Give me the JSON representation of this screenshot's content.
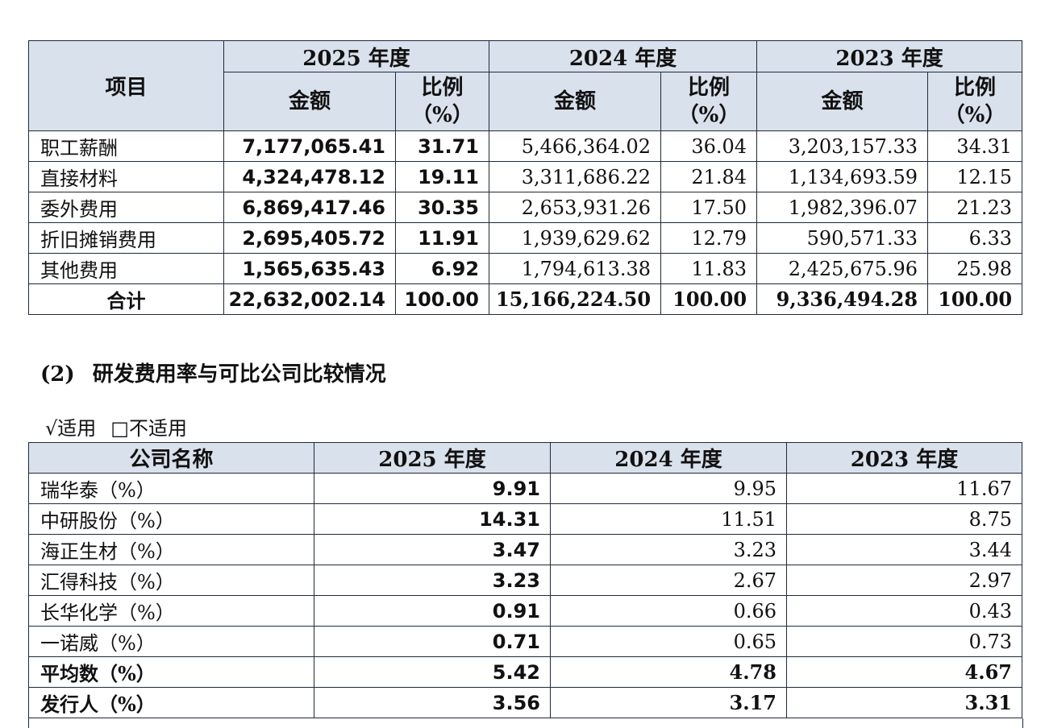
{
  "table1": {
    "header": {
      "item": "项目",
      "years": [
        "2025 年度",
        "2024 年度",
        "2023 年度"
      ],
      "amount": "金额",
      "ratio_line1": "比例",
      "ratio_line2": "（%）"
    },
    "rows": [
      {
        "item": "职工薪酬",
        "a2025": "7,177,065.41",
        "r2025": "31.71",
        "a2024": "5,466,364.02",
        "r2024": "36.04",
        "a2023": "3,203,157.33",
        "r2023": "34.31"
      },
      {
        "item": "直接材料",
        "a2025": "4,324,478.12",
        "r2025": "19.11",
        "a2024": "3,311,686.22",
        "r2024": "21.84",
        "a2023": "1,134,693.59",
        "r2023": "12.15"
      },
      {
        "item": "委外费用",
        "a2025": "6,869,417.46",
        "r2025": "30.35",
        "a2024": "2,653,931.26",
        "r2024": "17.50",
        "a2023": "1,982,396.07",
        "r2023": "21.23"
      },
      {
        "item": "折旧摊销费用",
        "a2025": "2,695,405.72",
        "r2025": "11.91",
        "a2024": "1,939,629.62",
        "r2024": "12.79",
        "a2023": "590,571.33",
        "r2023": "6.33"
      },
      {
        "item": "其他费用",
        "a2025": "1,565,635.43",
        "r2025": "6.92",
        "a2024": "1,794,613.38",
        "r2024": "11.83",
        "a2023": "2,425,675.96",
        "r2023": "25.98"
      }
    ],
    "total": {
      "item": "合计",
      "a2025": "22,632,002.14",
      "r2025": "100.00",
      "a2024": "15,166,224.50",
      "r2024": "100.00",
      "a2023": "9,336,494.28",
      "r2023": "100.00"
    }
  },
  "section": {
    "number": "(2)",
    "title": "研发费用率与可比公司比较情况"
  },
  "applicability": {
    "applicable": "√适用",
    "not_applicable": "□不适用"
  },
  "table2": {
    "header": [
      "公司名称",
      "2025 年度",
      "2024 年度",
      "2023 年度"
    ],
    "rows": [
      {
        "name": "瑞华泰（%）",
        "v2025": "9.91",
        "v2024": "9.95",
        "v2023": "11.67"
      },
      {
        "name": "中研股份（%）",
        "v2025": "14.31",
        "v2024": "11.51",
        "v2023": "8.75"
      },
      {
        "name": "海正生材（%）",
        "v2025": "3.47",
        "v2024": "3.23",
        "v2023": "3.44"
      },
      {
        "name": "汇得科技（%）",
        "v2025": "3.23",
        "v2024": "2.67",
        "v2023": "2.97"
      },
      {
        "name": "长华化学（%）",
        "v2025": "0.91",
        "v2024": "0.66",
        "v2023": "0.43"
      },
      {
        "name": "一诺威（%）",
        "v2025": "0.71",
        "v2024": "0.65",
        "v2023": "0.73"
      }
    ],
    "average": {
      "name": "平均数（%）",
      "v2025": "5.42",
      "v2024": "4.78",
      "v2023": "4.67"
    },
    "issuer": {
      "name": "发行人（%）",
      "v2025": "3.56",
      "v2024": "3.17",
      "v2023": "3.31"
    }
  }
}
